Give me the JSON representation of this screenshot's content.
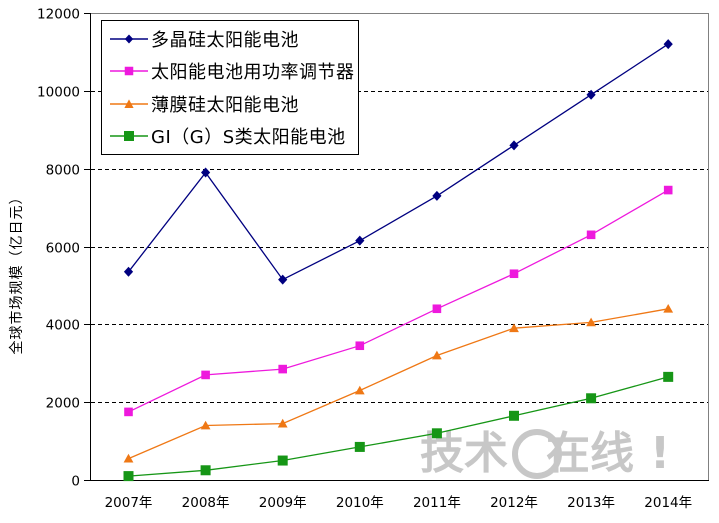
{
  "y_axis_title": "全球市场规模（亿日元）",
  "watermark": {
    "part_left": "技术",
    "ring_icon": "circle-ring",
    "part_right": "在线",
    "exclaim": "!"
  },
  "chart_data": {
    "type": "line",
    "title": "",
    "xlabel": "",
    "ylabel": "全球市场规模（亿日元）",
    "categories": [
      "2007年",
      "2008年",
      "2009年",
      "2010年",
      "2011年",
      "2012年",
      "2013年",
      "2014年"
    ],
    "series": [
      {
        "name": "多晶硅太阳能电池",
        "marker": "diamond",
        "color": "#000080",
        "values": [
          5350,
          7900,
          5150,
          6150,
          7300,
          8600,
          9900,
          11200
        ]
      },
      {
        "name": "太阳能电池用功率调节器",
        "marker": "square",
        "color": "#EE19DD",
        "values": [
          1750,
          2700,
          2850,
          3450,
          4400,
          5300,
          6300,
          7450
        ]
      },
      {
        "name": "薄膜硅太阳能电池",
        "marker": "triangle",
        "color": "#EF7815",
        "values": [
          550,
          1400,
          1450,
          2300,
          3200,
          3900,
          4050,
          4400
        ]
      },
      {
        "name": "GI（G）S类太阳能电池",
        "marker": "square",
        "color": "#169616",
        "values": [
          100,
          250,
          500,
          850,
          1200,
          1650,
          2100,
          2650
        ]
      }
    ],
    "ylim": [
      0,
      12000
    ],
    "ytick_step": 2000,
    "yticks": [
      0,
      2000,
      4000,
      6000,
      8000,
      10000,
      12000
    ],
    "grid": "horizontal-dashed",
    "gridline_color": "#000000",
    "frame_color": "#808080",
    "legend_position": "top-left"
  }
}
